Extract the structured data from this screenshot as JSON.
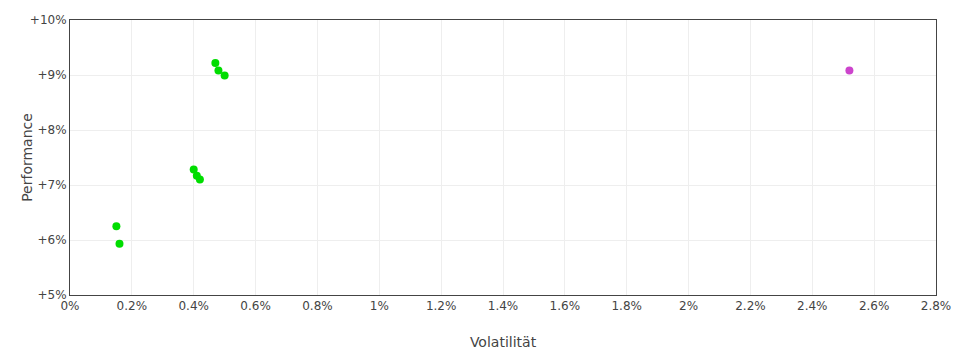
{
  "chart_data": {
    "type": "scatter",
    "xlabel": "Volatilität",
    "ylabel": "Performance",
    "series": [
      {
        "color": "#00dd00",
        "x": [
          0.0015,
          0.0016,
          0.004,
          0.0041,
          0.0042,
          0.0047,
          0.0048,
          0.005
        ],
        "values": [
          0.0625,
          0.0593,
          0.0728,
          0.0717,
          0.071,
          0.0922,
          0.0908,
          0.0899
        ]
      },
      {
        "color": "#cc44cc",
        "x": [
          0.0252
        ],
        "values": [
          0.0908
        ]
      }
    ],
    "xlim": [
      0.0,
      0.028
    ],
    "ylim": [
      0.05,
      0.1
    ],
    "xticks": [
      {
        "value": 0.0,
        "label": "0%"
      },
      {
        "value": 0.002,
        "label": "0.2%"
      },
      {
        "value": 0.004,
        "label": "0.4%"
      },
      {
        "value": 0.006,
        "label": "0.6%"
      },
      {
        "value": 0.008,
        "label": "0.8%"
      },
      {
        "value": 0.01,
        "label": "1%"
      },
      {
        "value": 0.012,
        "label": "1.2%"
      },
      {
        "value": 0.014,
        "label": "1.4%"
      },
      {
        "value": 0.016,
        "label": "1.6%"
      },
      {
        "value": 0.018,
        "label": "1.8%"
      },
      {
        "value": 0.02,
        "label": "2%"
      },
      {
        "value": 0.022,
        "label": "2.2%"
      },
      {
        "value": 0.024,
        "label": "2.4%"
      },
      {
        "value": 0.026,
        "label": "2.6%"
      },
      {
        "value": 0.028,
        "label": "2.8%"
      }
    ],
    "yticks": [
      {
        "value": 0.05,
        "label": "+5%"
      },
      {
        "value": 0.06,
        "label": "+6%"
      },
      {
        "value": 0.07,
        "label": "+7%"
      },
      {
        "value": 0.08,
        "label": "+8%"
      },
      {
        "value": 0.09,
        "label": "+9%"
      },
      {
        "value": 0.1,
        "label": "+10%"
      }
    ],
    "grid": true
  }
}
